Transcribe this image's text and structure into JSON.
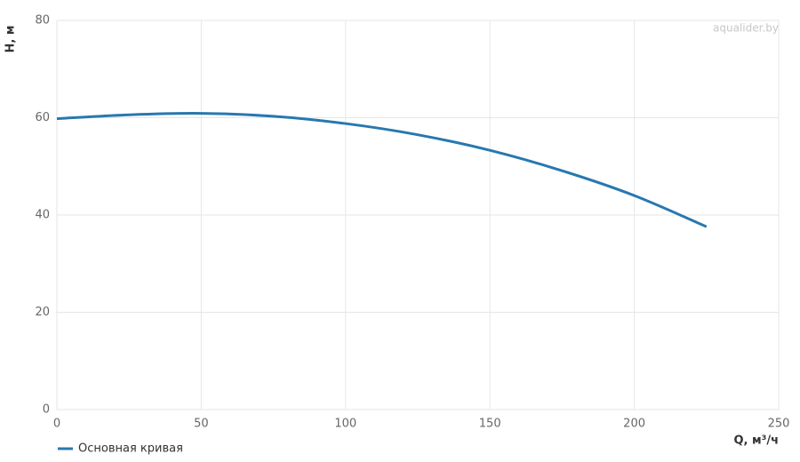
{
  "chart_data": {
    "type": "line",
    "watermark": "aqualider.by",
    "x_label": "Q, м³/ч",
    "y_label": "H, м",
    "x": [
      0,
      25,
      50,
      75,
      100,
      125,
      150,
      175,
      200,
      225
    ],
    "series": [
      {
        "name": "Основная кривая",
        "color": "#2878b0",
        "values": [
          59.8,
          60.6,
          60.9,
          60.3,
          58.8,
          56.5,
          53.3,
          49.1,
          44.0,
          37.6
        ]
      }
    ],
    "xlim": [
      0,
      250
    ],
    "xticks": [
      0,
      50,
      100,
      150,
      200,
      250
    ],
    "ylim": [
      0,
      80
    ],
    "yticks": [
      0,
      20,
      40,
      60,
      80
    ],
    "grid": true,
    "legend": "bottom-left"
  }
}
